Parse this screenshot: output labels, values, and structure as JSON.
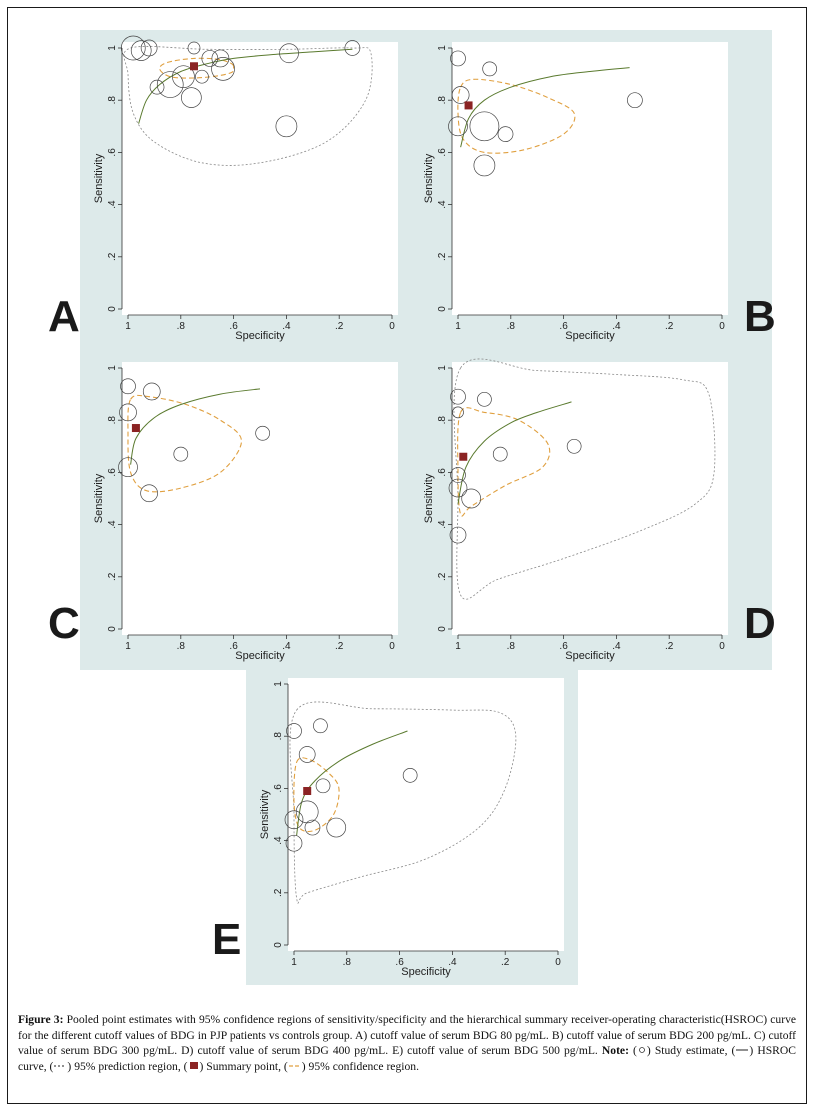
{
  "chart_data": [
    {
      "type": "scatter",
      "panel": "A",
      "xlabel": "Specificity",
      "ylabel": "Sensitivity",
      "x_ticks": [
        "1",
        ".8",
        ".6",
        ".4",
        ".2",
        "0"
      ],
      "y_ticks": [
        "0",
        ".2",
        ".4",
        ".6",
        ".8",
        "1"
      ],
      "xlim": [
        1,
        0
      ],
      "ylim": [
        0,
        1
      ],
      "studies": [
        {
          "spec": 0.98,
          "sens": 1.0,
          "size": 1.6
        },
        {
          "spec": 0.95,
          "sens": 0.99,
          "size": 1.2
        },
        {
          "spec": 0.92,
          "sens": 1.0,
          "size": 0.8
        },
        {
          "spec": 0.89,
          "sens": 0.85,
          "size": 0.6
        },
        {
          "spec": 0.84,
          "sens": 0.86,
          "size": 1.8
        },
        {
          "spec": 0.79,
          "sens": 0.89,
          "size": 1.4
        },
        {
          "spec": 0.76,
          "sens": 0.81,
          "size": 1.2
        },
        {
          "spec": 0.72,
          "sens": 0.89,
          "size": 0.5
        },
        {
          "spec": 0.75,
          "sens": 1.0,
          "size": 0.4
        },
        {
          "spec": 0.69,
          "sens": 0.96,
          "size": 0.8
        },
        {
          "spec": 0.65,
          "sens": 0.96,
          "size": 0.9
        },
        {
          "spec": 0.64,
          "sens": 0.92,
          "size": 1.5
        },
        {
          "spec": 0.39,
          "sens": 0.98,
          "size": 1.1
        },
        {
          "spec": 0.4,
          "sens": 0.7,
          "size": 1.3
        },
        {
          "spec": 0.15,
          "sens": 1.0,
          "size": 0.7
        }
      ],
      "summary_point": {
        "spec": 0.75,
        "sens": 0.93
      },
      "hsroc": [
        [
          0.96,
          0.71
        ],
        [
          0.93,
          0.8
        ],
        [
          0.88,
          0.86
        ],
        [
          0.8,
          0.91
        ],
        [
          0.7,
          0.94
        ],
        [
          0.6,
          0.96
        ],
        [
          0.45,
          0.975
        ],
        [
          0.3,
          0.985
        ],
        [
          0.15,
          0.995
        ]
      ],
      "confidence_region": [
        [
          0.6,
          0.93
        ],
        [
          0.65,
          0.955
        ],
        [
          0.75,
          0.96
        ],
        [
          0.85,
          0.945
        ],
        [
          0.88,
          0.92
        ],
        [
          0.84,
          0.89
        ],
        [
          0.75,
          0.885
        ],
        [
          0.65,
          0.895
        ],
        [
          0.6,
          0.915
        ]
      ],
      "prediction_region": [
        [
          0.99,
          1.0
        ],
        [
          0.7,
          0.995
        ],
        [
          0.4,
          0.995
        ],
        [
          0.15,
          1.0
        ],
        [
          0.08,
          0.98
        ],
        [
          0.1,
          0.8
        ],
        [
          0.25,
          0.64
        ],
        [
          0.5,
          0.56
        ],
        [
          0.72,
          0.56
        ],
        [
          0.9,
          0.64
        ],
        [
          0.98,
          0.75
        ],
        [
          1.0,
          0.9
        ],
        [
          0.99,
          1.0
        ]
      ]
    },
    {
      "type": "scatter",
      "panel": "B",
      "xlabel": "Specificity",
      "ylabel": "Sensitivity",
      "x_ticks": [
        "1",
        ".8",
        ".6",
        ".4",
        ".2",
        "0"
      ],
      "y_ticks": [
        "0",
        ".2",
        ".4",
        ".6",
        ".8",
        "1"
      ],
      "xlim": [
        1,
        0
      ],
      "ylim": [
        0,
        1
      ],
      "studies": [
        {
          "spec": 1.0,
          "sens": 0.96,
          "size": 0.7
        },
        {
          "spec": 0.99,
          "sens": 0.82,
          "size": 0.9
        },
        {
          "spec": 0.88,
          "sens": 0.92,
          "size": 0.6
        },
        {
          "spec": 1.0,
          "sens": 0.7,
          "size": 1.1
        },
        {
          "spec": 0.9,
          "sens": 0.7,
          "size": 2.1
        },
        {
          "spec": 0.82,
          "sens": 0.67,
          "size": 0.7
        },
        {
          "spec": 0.9,
          "sens": 0.55,
          "size": 1.3
        },
        {
          "spec": 0.33,
          "sens": 0.8,
          "size": 0.7
        }
      ],
      "summary_point": {
        "spec": 0.96,
        "sens": 0.78
      },
      "hsroc": [
        [
          0.99,
          0.62
        ],
        [
          0.96,
          0.73
        ],
        [
          0.9,
          0.8
        ],
        [
          0.8,
          0.85
        ],
        [
          0.65,
          0.89
        ],
        [
          0.5,
          0.91
        ],
        [
          0.35,
          0.925
        ]
      ],
      "confidence_region": [
        [
          0.99,
          0.85
        ],
        [
          0.94,
          0.88
        ],
        [
          0.8,
          0.86
        ],
        [
          0.66,
          0.81
        ],
        [
          0.56,
          0.75
        ],
        [
          0.6,
          0.67
        ],
        [
          0.75,
          0.61
        ],
        [
          0.9,
          0.6
        ],
        [
          0.98,
          0.65
        ],
        [
          1.0,
          0.75
        ],
        [
          0.99,
          0.85
        ]
      ]
    },
    {
      "type": "scatter",
      "panel": "C",
      "xlabel": "Specificity",
      "ylabel": "Sensitivity",
      "x_ticks": [
        "1",
        ".8",
        ".6",
        ".4",
        ".2",
        "0"
      ],
      "y_ticks": [
        "0",
        ".2",
        ".4",
        ".6",
        ".8",
        "1"
      ],
      "xlim": [
        1,
        0
      ],
      "ylim": [
        0,
        1
      ],
      "studies": [
        {
          "spec": 1.0,
          "sens": 0.93,
          "size": 0.7
        },
        {
          "spec": 0.91,
          "sens": 0.91,
          "size": 0.9
        },
        {
          "spec": 1.0,
          "sens": 0.83,
          "size": 0.9
        },
        {
          "spec": 0.8,
          "sens": 0.67,
          "size": 0.6
        },
        {
          "spec": 0.49,
          "sens": 0.75,
          "size": 0.6
        },
        {
          "spec": 1.0,
          "sens": 0.62,
          "size": 1.1
        },
        {
          "spec": 0.92,
          "sens": 0.52,
          "size": 0.9
        }
      ],
      "summary_point": {
        "spec": 0.97,
        "sens": 0.77
      },
      "hsroc": [
        [
          0.99,
          0.63
        ],
        [
          0.97,
          0.73
        ],
        [
          0.9,
          0.81
        ],
        [
          0.8,
          0.86
        ],
        [
          0.65,
          0.9
        ],
        [
          0.5,
          0.92
        ]
      ],
      "confidence_region": [
        [
          0.99,
          0.88
        ],
        [
          0.92,
          0.89
        ],
        [
          0.78,
          0.86
        ],
        [
          0.65,
          0.8
        ],
        [
          0.57,
          0.72
        ],
        [
          0.65,
          0.6
        ],
        [
          0.8,
          0.54
        ],
        [
          0.93,
          0.53
        ],
        [
          0.99,
          0.6
        ],
        [
          1.0,
          0.75
        ],
        [
          0.99,
          0.88
        ]
      ]
    },
    {
      "type": "scatter",
      "panel": "D",
      "xlabel": "Specificity",
      "ylabel": "Sensitivity",
      "x_ticks": [
        "1",
        ".8",
        ".6",
        ".4",
        ".2",
        "0"
      ],
      "y_ticks": [
        "0",
        ".2",
        ".4",
        ".6",
        ".8",
        "1"
      ],
      "xlim": [
        1,
        0
      ],
      "ylim": [
        0,
        1
      ],
      "studies": [
        {
          "spec": 1.0,
          "sens": 0.89,
          "size": 0.7
        },
        {
          "spec": 0.9,
          "sens": 0.88,
          "size": 0.6
        },
        {
          "spec": 1.0,
          "sens": 0.83,
          "size": 0.3
        },
        {
          "spec": 0.84,
          "sens": 0.67,
          "size": 0.6
        },
        {
          "spec": 0.56,
          "sens": 0.7,
          "size": 0.6
        },
        {
          "spec": 1.0,
          "sens": 0.59,
          "size": 0.7
        },
        {
          "spec": 1.0,
          "sens": 0.54,
          "size": 1.0
        },
        {
          "spec": 0.95,
          "sens": 0.5,
          "size": 1.1
        },
        {
          "spec": 1.0,
          "sens": 0.36,
          "size": 0.8
        }
      ],
      "summary_point": {
        "spec": 0.98,
        "sens": 0.66
      },
      "hsroc": [
        [
          1.0,
          0.48
        ],
        [
          0.97,
          0.62
        ],
        [
          0.9,
          0.72
        ],
        [
          0.8,
          0.79
        ],
        [
          0.7,
          0.83
        ],
        [
          0.57,
          0.87
        ]
      ],
      "confidence_region": [
        [
          0.99,
          0.83
        ],
        [
          0.9,
          0.83
        ],
        [
          0.77,
          0.8
        ],
        [
          0.66,
          0.71
        ],
        [
          0.68,
          0.62
        ],
        [
          0.82,
          0.55
        ],
        [
          0.95,
          0.47
        ],
        [
          0.99,
          0.44
        ],
        [
          1.0,
          0.6
        ],
        [
          0.99,
          0.83
        ]
      ],
      "prediction_region": [
        [
          0.99,
          1.0
        ],
        [
          0.7,
          0.99
        ],
        [
          0.4,
          0.975
        ],
        [
          0.15,
          0.955
        ],
        [
          0.05,
          0.9
        ],
        [
          0.03,
          0.6
        ],
        [
          0.1,
          0.48
        ],
        [
          0.3,
          0.38
        ],
        [
          0.6,
          0.27
        ],
        [
          0.85,
          0.19
        ],
        [
          0.99,
          0.13
        ],
        [
          1.0,
          0.5
        ],
        [
          0.99,
          1.0
        ]
      ]
    },
    {
      "type": "scatter",
      "panel": "E",
      "xlabel": "Specificity",
      "ylabel": "Sensitivity",
      "x_ticks": [
        "1",
        ".8",
        ".6",
        ".4",
        ".2",
        "0"
      ],
      "y_ticks": [
        "0",
        ".2",
        ".4",
        ".6",
        ".8",
        "1"
      ],
      "xlim": [
        1,
        0
      ],
      "ylim": [
        0,
        1
      ],
      "studies": [
        {
          "spec": 1.0,
          "sens": 0.82,
          "size": 0.7
        },
        {
          "spec": 0.9,
          "sens": 0.84,
          "size": 0.6
        },
        {
          "spec": 0.95,
          "sens": 0.73,
          "size": 0.8
        },
        {
          "spec": 0.89,
          "sens": 0.61,
          "size": 0.6
        },
        {
          "spec": 0.56,
          "sens": 0.65,
          "size": 0.6
        },
        {
          "spec": 1.0,
          "sens": 0.48,
          "size": 1.0
        },
        {
          "spec": 0.95,
          "sens": 0.51,
          "size": 1.4
        },
        {
          "spec": 0.93,
          "sens": 0.45,
          "size": 0.7
        },
        {
          "spec": 0.84,
          "sens": 0.45,
          "size": 1.1
        },
        {
          "spec": 1.0,
          "sens": 0.39,
          "size": 0.8
        }
      ],
      "summary_point": {
        "spec": 0.95,
        "sens": 0.59
      },
      "hsroc": [
        [
          0.99,
          0.42
        ],
        [
          0.97,
          0.55
        ],
        [
          0.92,
          0.63
        ],
        [
          0.82,
          0.71
        ],
        [
          0.7,
          0.77
        ],
        [
          0.57,
          0.82
        ]
      ],
      "confidence_region": [
        [
          0.99,
          0.7
        ],
        [
          0.94,
          0.71
        ],
        [
          0.87,
          0.66
        ],
        [
          0.83,
          0.6
        ],
        [
          0.85,
          0.5
        ],
        [
          0.92,
          0.44
        ],
        [
          0.98,
          0.45
        ],
        [
          1.0,
          0.55
        ],
        [
          0.99,
          0.7
        ]
      ],
      "prediction_region": [
        [
          0.99,
          0.9
        ],
        [
          0.7,
          0.905
        ],
        [
          0.4,
          0.9
        ],
        [
          0.22,
          0.89
        ],
        [
          0.16,
          0.8
        ],
        [
          0.2,
          0.6
        ],
        [
          0.3,
          0.45
        ],
        [
          0.5,
          0.33
        ],
        [
          0.75,
          0.26
        ],
        [
          0.95,
          0.2
        ],
        [
          0.99,
          0.18
        ],
        [
          1.0,
          0.5
        ],
        [
          0.99,
          0.9
        ]
      ]
    }
  ],
  "caption": {
    "label": "Figure 3:",
    "text_1": "Pooled point estimates with 95% confidence regions of sensitivity/specificity and the hierarchical summary receiver-operating characteristic(HSROC) curve for the different cutoff values of BDG in PJP patients vs controls group. A) cutoff value of serum BDG 80 pg/mL. B) cutoff value of serum BDG 200 pg/mL. C) cutoff value of serum BDG 300 pg/mL. D) cutoff value of serum BDG 400 pg/mL. E) cutoff value of serum BDG 500 pg/mL.",
    "note_label": "Note:",
    "legend_study": "Study estimate,",
    "legend_hsroc": "HSROC curve,",
    "legend_prediction": "95% prediction region,",
    "legend_summary": "Summary point,",
    "legend_confidence": "95% confidence region."
  },
  "colors": {
    "panel_background": "#ddeaea",
    "hsroc": "#5a7a2e",
    "confidence": "#e0a040",
    "summary": "#8b2323",
    "prediction": "#888888"
  }
}
